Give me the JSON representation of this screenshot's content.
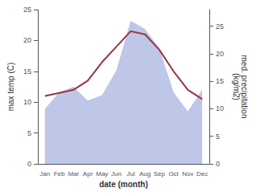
{
  "chart_data": {
    "type": "line",
    "categories": [
      "Jan",
      "Feb",
      "Mar",
      "Apr",
      "May",
      "Jun",
      "Jul",
      "Aug",
      "Sep",
      "Oct",
      "Nov",
      "Dec"
    ],
    "xlabel": "date (month)",
    "ylabel": "max temp (C)",
    "y2label": "med. precipitation\n(kg/m2)",
    "series": [
      {
        "type": "area",
        "axis": "y2",
        "color": "#aab4e0",
        "values": [
          10.0,
          13.0,
          14.0,
          11.5,
          12.5,
          17.0,
          26.0,
          24.5,
          21.0,
          13.0,
          9.5,
          13.5
        ]
      },
      {
        "type": "line",
        "color": "#993344",
        "values": [
          11.0,
          11.5,
          12.0,
          13.5,
          16.5,
          19.0,
          21.5,
          21.0,
          18.5,
          15.0,
          12.0,
          10.5
        ]
      }
    ],
    "ylim": [
      0,
      25
    ],
    "yticks": [
      0,
      5,
      10,
      15,
      20,
      25
    ],
    "y2lim": [
      0,
      28
    ],
    "y2ticks": [
      0,
      5,
      10,
      15,
      20,
      25
    ],
    "grid": false
  }
}
